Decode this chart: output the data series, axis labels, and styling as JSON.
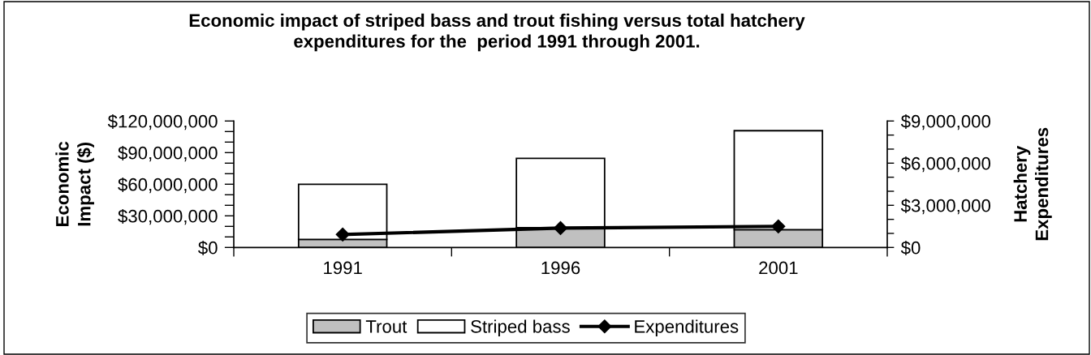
{
  "chart_data": {
    "type": "bar",
    "title": "Economic impact of striped bass and trout fishing versus total hatchery\nexpenditures for the  period 1991 through 2001.",
    "ylabel": "Economic\nImpact ($)",
    "y2label": "Hatchery\nExpenditures",
    "categories": [
      "1991",
      "1996",
      "2001"
    ],
    "stacked": true,
    "series": [
      {
        "name": "Trout",
        "color": "#c0c0c0",
        "values": [
          7700000,
          18700000,
          16900000
        ]
      },
      {
        "name": "Striped bass",
        "color": "#ffffff",
        "values": [
          52300000,
          65900000,
          93900000
        ]
      },
      {
        "name": "Expenditures",
        "type": "line",
        "axis": "y2",
        "color": "#000000",
        "marker": "diamond",
        "line_style": "solid",
        "values": [
          920000,
          1380000,
          1500000
        ]
      }
    ],
    "ylim": [
      0,
      120000000
    ],
    "yticks": [
      {
        "value": 0,
        "label": "$0"
      },
      {
        "value": 10000000,
        "label": null
      },
      {
        "value": 20000000,
        "label": null
      },
      {
        "value": 30000000,
        "label": "$30,000,000"
      },
      {
        "value": 40000000,
        "label": null
      },
      {
        "value": 50000000,
        "label": null
      },
      {
        "value": 60000000,
        "label": "$60,000,000"
      },
      {
        "value": 70000000,
        "label": null
      },
      {
        "value": 80000000,
        "label": null
      },
      {
        "value": 90000000,
        "label": "$90,000,000"
      },
      {
        "value": 100000000,
        "label": null
      },
      {
        "value": 110000000,
        "label": null
      },
      {
        "value": 120000000,
        "label": "$120,000,000"
      }
    ],
    "y2lim": [
      0,
      9000000
    ],
    "y2ticks": [
      {
        "value": 0,
        "label": "$0"
      },
      {
        "value": 1000000,
        "label": null
      },
      {
        "value": 2000000,
        "label": null
      },
      {
        "value": 3000000,
        "label": "$3,000,000"
      },
      {
        "value": 4000000,
        "label": null
      },
      {
        "value": 5000000,
        "label": null
      },
      {
        "value": 6000000,
        "label": "$6,000,000"
      },
      {
        "value": 7000000,
        "label": null
      },
      {
        "value": 8000000,
        "label": null
      },
      {
        "value": 9000000,
        "label": "$9,000,000"
      }
    ],
    "grid": false,
    "legend": "bottom"
  }
}
